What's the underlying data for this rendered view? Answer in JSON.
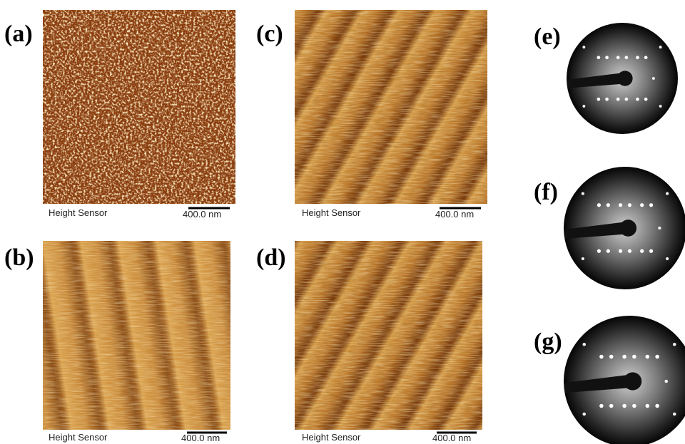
{
  "afm_panels": [
    {
      "label": "(a)",
      "caption": "Height Sensor",
      "scale": "400.0 nm"
    },
    {
      "label": "(b)",
      "caption": "Height Sensor",
      "scale": "400.0 nm"
    },
    {
      "label": "(c)",
      "caption": "Height Sensor",
      "scale": "400.0 nm"
    },
    {
      "label": "(d)",
      "caption": "Height Sensor",
      "scale": "400.0 nm"
    }
  ],
  "leed_panels": [
    {
      "label": "(e)"
    },
    {
      "label": "(f)"
    },
    {
      "label": "(g)"
    }
  ]
}
